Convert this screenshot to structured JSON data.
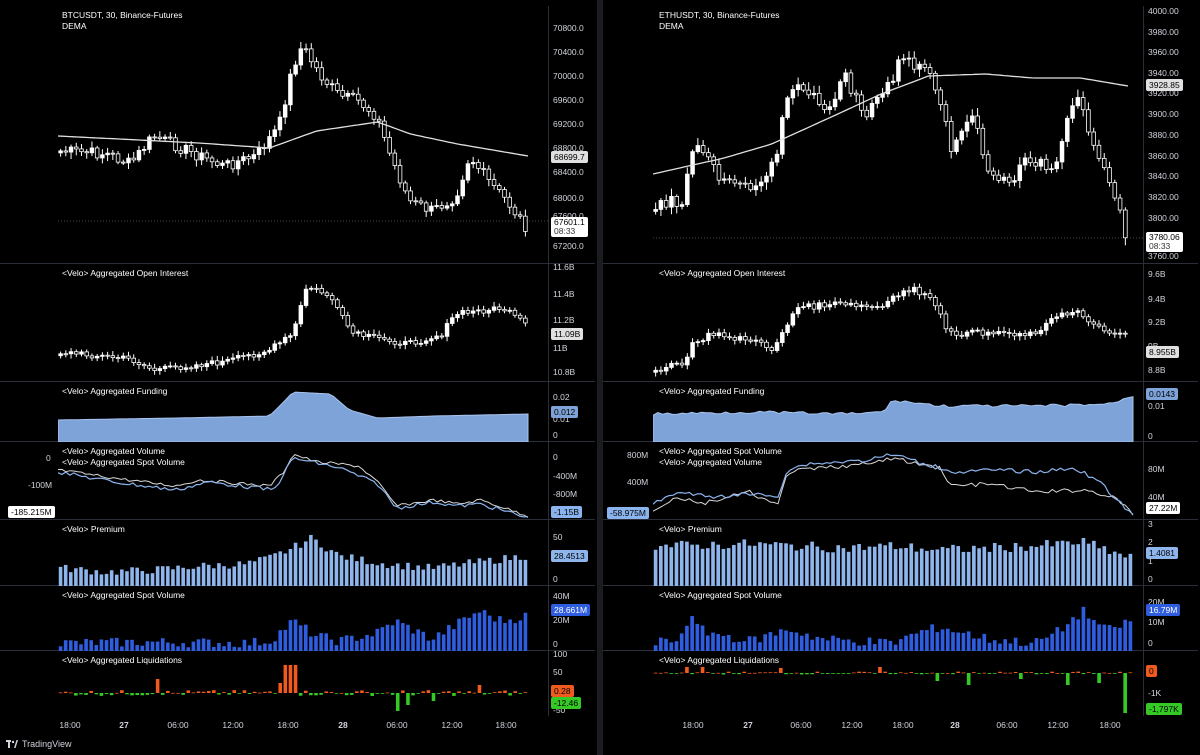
{
  "footer": {
    "brand": "TradingView",
    "logo_icon": "tradingview-logo-icon"
  },
  "time_axis_left": [
    "18:00",
    "27",
    "06:00",
    "12:00",
    "18:00",
    "28",
    "06:00",
    "12:00",
    "18:00"
  ],
  "time_axis_right": [
    "18:00",
    "27",
    "06:00",
    "12:00",
    "18:00",
    "28",
    "06:00",
    "12:00",
    "18:00"
  ],
  "colors": {
    "up": "#ffffff",
    "down": "#000000",
    "dema": "#e0e0e0",
    "funding": "#7ea3d8",
    "premium": "#8fb6ec",
    "spot_volume": "#2f5de0",
    "liq_long": "#f05a1e",
    "liq_short": "#34c924",
    "line_blue": "#8bb4ee",
    "line_white": "#d8d8d8"
  },
  "left": {
    "title": "BTCUSDT, 30, Binance-Futures",
    "subtitle": "DEMA",
    "price_ticks": [
      "70800.0",
      "70400.0",
      "70000.0",
      "69600.0",
      "69200.0",
      "68800.0",
      "68400.0",
      "68000.0",
      "67600.0",
      "67200.0"
    ],
    "dema_value": "68699.7",
    "last_price": "67601.1",
    "countdown": "08:33",
    "oi_title": "<Velo> Aggregated Open Interest",
    "oi_ticks": [
      "11.6B",
      "11.4B",
      "11.2B",
      "11B",
      "10.8B"
    ],
    "oi_value": "11.09B",
    "funding_title": "<Velo> Aggregated Funding",
    "funding_ticks": [
      "0.02",
      "0.01",
      "0"
    ],
    "funding_value": "0.012",
    "volume_title": "<Velo> Aggregated Volume",
    "volume_title2": "<Velo> Aggregated Spot Volume",
    "volume_ticks": [
      "0",
      "-400M",
      "-800M"
    ],
    "volume_left_ticks": [
      "0",
      "-100M"
    ],
    "volume_value": "-1.15B",
    "volume_left_value": "-185.215M",
    "premium_title": "<Velo> Premium",
    "premium_ticks": [
      "50",
      "25",
      "0"
    ],
    "premium_value": "28.4513",
    "spot_title": "<Velo> Aggregated Spot Volume",
    "spot_ticks": [
      "40M",
      "20M",
      "0"
    ],
    "spot_value": "28.661M",
    "liq_title": "<Velo> Aggregated Liquidations",
    "liq_ticks": [
      "100",
      "50",
      "-50"
    ],
    "liq_value_long": "0.28",
    "liq_value_short": "-12.46"
  },
  "right": {
    "title": "ETHUSDT, 30, Binance-Futures",
    "subtitle": "DEMA",
    "price_ticks": [
      "4000.00",
      "3980.00",
      "3960.00",
      "3940.00",
      "3920.00",
      "3900.00",
      "3880.00",
      "3860.00",
      "3840.00",
      "3820.00",
      "3800.00",
      "3780.00",
      "3760.00"
    ],
    "dema_value": "3928.85",
    "last_price": "3780.06",
    "countdown": "08:33",
    "oi_title": "<Velo> Aggregated Open Interest",
    "oi_ticks": [
      "9.6B",
      "9.4B",
      "9.2B",
      "9B",
      "8.8B"
    ],
    "oi_value": "8.955B",
    "funding_title": "<Velo> Aggregated Funding",
    "funding_ticks": [
      "0.01",
      "0"
    ],
    "funding_value": "0.0143",
    "volume_title": "<Velo> Aggregated Spot Volume",
    "volume_title2": "<Velo> Aggregated Volume",
    "volume_ticks": [
      "80M",
      "40M"
    ],
    "volume_left_ticks": [
      "800M",
      "400M"
    ],
    "volume_value": "27.22M",
    "volume_left_value": "-58.975M",
    "premium_title": "<Velo> Premium",
    "premium_ticks": [
      "3",
      "2",
      "1",
      "0"
    ],
    "premium_value": "1.4081",
    "spot_title": "<Velo> Aggregated Spot Volume",
    "spot_ticks": [
      "20M",
      "10M",
      "0"
    ],
    "spot_value": "16.79M",
    "liq_title": "<Velo> Aggregated Liquidations",
    "liq_ticks": [
      "-1K"
    ],
    "liq_value_long": "0",
    "liq_value_short": "-1,797K"
  }
}
